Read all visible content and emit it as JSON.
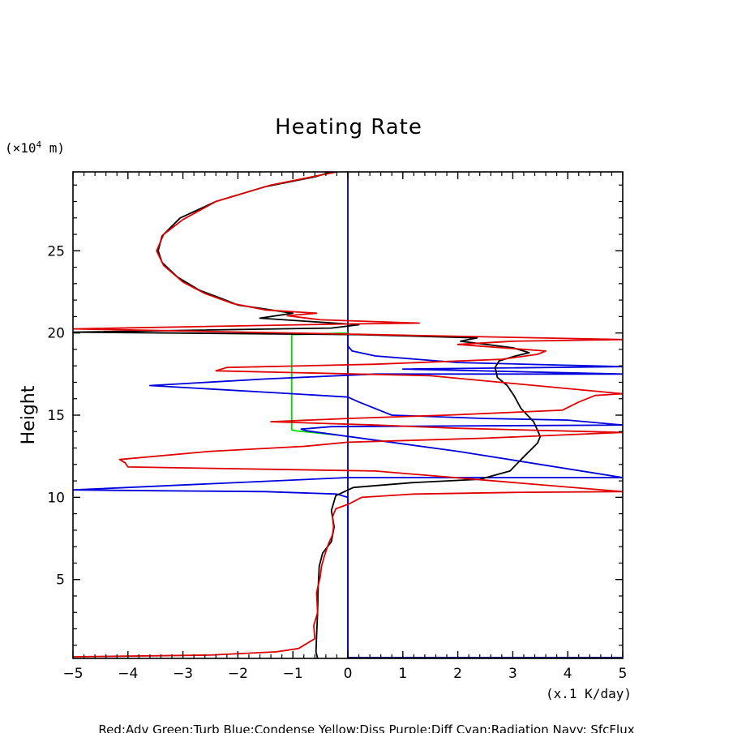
{
  "chart_data": {
    "type": "line",
    "title": "Heating Rate",
    "ylabel": "Height",
    "yunit_prefix": "(×10",
    "yunit_exp": "4",
    "yunit_suffix": " m)",
    "xunit": "(x.1 K/day)",
    "xlim": [
      -5,
      5
    ],
    "ylim": [
      0.2,
      29.8
    ],
    "xticks": [
      -5,
      -4,
      -3,
      -2,
      -1,
      0,
      1,
      2,
      3,
      4,
      5
    ],
    "xtick_labels": [
      "−5",
      "−4",
      "−3",
      "−2",
      "−1",
      "0",
      "1",
      "2",
      "3",
      "4",
      "5"
    ],
    "yticks": [
      5,
      10,
      15,
      20,
      25
    ],
    "ytick_labels": [
      "5",
      "10",
      "15",
      "20",
      "25"
    ],
    "legend": "Red:Adv  Green:Turb  Blue:Condense  Yellow:Diss  Purple:Diff  Cyan:Radiation  Navy: SfcFlux",
    "series": [
      {
        "name": "Black (total)",
        "color": "#000000",
        "points": [
          [
            -0.55,
            0.2
          ],
          [
            -0.58,
            0.6
          ],
          [
            -0.57,
            1.5
          ],
          [
            -0.55,
            3
          ],
          [
            -0.54,
            4.5
          ],
          [
            -0.52,
            5.8
          ],
          [
            -0.46,
            6.6
          ],
          [
            -0.3,
            7.3
          ],
          [
            -0.25,
            8.2
          ],
          [
            -0.3,
            9.2
          ],
          [
            -0.22,
            10.1
          ],
          [
            0.1,
            10.6
          ],
          [
            1.2,
            10.9
          ],
          [
            2.4,
            11.1
          ],
          [
            2.95,
            11.6
          ],
          [
            3.15,
            12.3
          ],
          [
            3.45,
            13.3
          ],
          [
            3.5,
            13.7
          ],
          [
            3.38,
            14.6
          ],
          [
            3.15,
            15.4
          ],
          [
            3.02,
            16.2
          ],
          [
            2.9,
            16.8
          ],
          [
            2.72,
            17.3
          ],
          [
            2.68,
            17.9
          ],
          [
            2.75,
            18.3
          ],
          [
            3.05,
            18.6
          ],
          [
            3.3,
            18.8
          ],
          [
            3.0,
            19.1
          ],
          [
            2.05,
            19.5
          ],
          [
            2.35,
            19.7
          ],
          [
            0.2,
            19.9
          ],
          [
            -5.0,
            20.05
          ],
          [
            -0.3,
            20.3
          ],
          [
            0.2,
            20.5
          ],
          [
            -1.6,
            20.9
          ],
          [
            -1.0,
            21.2
          ],
          [
            -1.6,
            21.5
          ],
          [
            -2.0,
            21.7
          ],
          [
            -2.3,
            22.1
          ],
          [
            -2.7,
            22.6
          ],
          [
            -3.1,
            23.4
          ],
          [
            -3.38,
            24.3
          ],
          [
            -3.45,
            25
          ],
          [
            -3.38,
            25.9
          ],
          [
            -3.05,
            27
          ],
          [
            -2.4,
            28
          ],
          [
            -1.5,
            28.9
          ],
          [
            -0.6,
            29.5
          ],
          [
            -0.3,
            29.8
          ]
        ]
      },
      {
        "name": "Red:Adv",
        "color": "#e00000",
        "points": [
          [
            -5.0,
            0.3
          ],
          [
            -2.5,
            0.4
          ],
          [
            -1.3,
            0.6
          ],
          [
            -0.9,
            0.8
          ],
          [
            -0.8,
            1.0
          ],
          [
            -0.6,
            1.4
          ],
          [
            -0.62,
            2.2
          ],
          [
            -0.55,
            3
          ],
          [
            -0.57,
            4.2
          ],
          [
            -0.5,
            5.2
          ],
          [
            -0.48,
            5.8
          ],
          [
            -0.42,
            6.5
          ],
          [
            -0.35,
            7.2
          ],
          [
            -0.28,
            7.7
          ],
          [
            -0.26,
            8.2
          ],
          [
            -0.28,
            8.8
          ],
          [
            -0.22,
            9.3
          ],
          [
            0.02,
            9.6
          ],
          [
            0.25,
            10.0
          ],
          [
            1.2,
            10.2
          ],
          [
            3.0,
            10.3
          ],
          [
            5.0,
            10.35
          ],
          [
            0.5,
            11.6
          ],
          [
            -4.0,
            11.85
          ],
          [
            -4.05,
            12.1
          ],
          [
            -4.15,
            12.3
          ],
          [
            -2.5,
            12.8
          ],
          [
            -0.8,
            13.1
          ],
          [
            0,
            13.35
          ],
          [
            2.5,
            13.6
          ],
          [
            5.0,
            13.95
          ],
          [
            2.0,
            14.2
          ],
          [
            0.5,
            14.4
          ],
          [
            -1.4,
            14.6
          ],
          [
            0.0,
            14.8
          ],
          [
            1.8,
            15.0
          ],
          [
            3.9,
            15.3
          ],
          [
            4.2,
            15.8
          ],
          [
            4.5,
            16.2
          ],
          [
            5.0,
            16.3
          ],
          [
            1.5,
            17.4
          ],
          [
            -2.4,
            17.7
          ],
          [
            -2.2,
            17.9
          ],
          [
            0.5,
            18.1
          ],
          [
            2.8,
            18.4
          ],
          [
            3.45,
            18.7
          ],
          [
            3.6,
            18.9
          ],
          [
            2.0,
            19.3
          ],
          [
            3.0,
            19.5
          ],
          [
            5.0,
            19.6
          ],
          [
            0.5,
            19.9
          ],
          [
            -5.0,
            20.25
          ],
          [
            0.0,
            20.55
          ],
          [
            1.3,
            20.6
          ],
          [
            -0.5,
            20.8
          ],
          [
            -1.1,
            21.05
          ],
          [
            -0.57,
            21.2
          ],
          [
            -1.5,
            21.4
          ],
          [
            -2.1,
            21.8
          ],
          [
            -2.6,
            22.4
          ],
          [
            -3.0,
            23.1
          ],
          [
            -3.35,
            24.1
          ],
          [
            -3.48,
            25
          ],
          [
            -3.35,
            26
          ],
          [
            -3.0,
            26.9
          ],
          [
            -2.4,
            28
          ],
          [
            -1.4,
            29
          ],
          [
            -0.2,
            29.8
          ]
        ]
      },
      {
        "name": "Blue:Condense",
        "color": "#0000dd",
        "points": [
          [
            0,
            0.2
          ],
          [
            0,
            10.0
          ],
          [
            -0.2,
            10.2
          ],
          [
            -1.5,
            10.35
          ],
          [
            -3.5,
            10.4
          ],
          [
            -5.0,
            10.45
          ],
          [
            0,
            11.2
          ],
          [
            5.0,
            11.2
          ],
          [
            2.0,
            12.8
          ],
          [
            -0.75,
            14.05
          ],
          [
            -0.85,
            14.15
          ],
          [
            -0.3,
            14.3
          ],
          [
            5.0,
            14.4
          ],
          [
            4.0,
            14.7
          ],
          [
            2.5,
            14.8
          ],
          [
            0.8,
            15.0
          ],
          [
            0.2,
            15.8
          ],
          [
            0,
            16.1
          ],
          [
            -1.0,
            16.3
          ],
          [
            -3.6,
            16.8
          ],
          [
            -1.5,
            17.2
          ],
          [
            0.5,
            17.5
          ],
          [
            5.0,
            17.5
          ],
          [
            1.0,
            17.8
          ],
          [
            5.0,
            17.95
          ],
          [
            2.0,
            18.2
          ],
          [
            0.5,
            18.6
          ],
          [
            0.08,
            18.9
          ],
          [
            0,
            19.2
          ],
          [
            0,
            19.9
          ]
        ]
      },
      {
        "name": "Green:Turb",
        "color": "#00dd00",
        "points": [
          [
            -0.2,
            13.8
          ],
          [
            -0.95,
            14.05
          ],
          [
            -1.02,
            14.1
          ],
          [
            -1.02,
            19.9
          ],
          [
            0,
            20.0
          ]
        ]
      }
    ],
    "vertical_lines": [
      {
        "name": "Navy zero line",
        "x": 0,
        "color": "#000080"
      }
    ],
    "horizontal_segments": [
      {
        "name": "Navy surface flux",
        "x_from": 0,
        "x_to": 5,
        "y": 0.25,
        "color": "#000080"
      }
    ]
  }
}
